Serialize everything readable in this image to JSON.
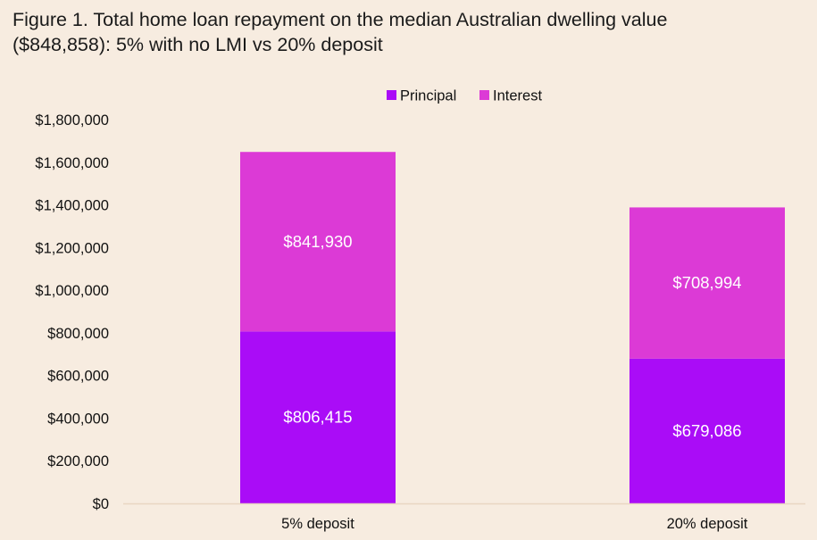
{
  "title": {
    "line1": "Figure 1. Total home loan repayment on the median Australian dwelling value",
    "line2": "($848,858): 5% with no LMI vs 20% deposit"
  },
  "colors": {
    "background": "#f7ece0",
    "principal": "#aa0cf7",
    "interest": "#dc3ad6",
    "axis": "#e9d6c2",
    "label_on_bar": "#ffffff"
  },
  "chart_data": {
    "type": "bar",
    "stacked": true,
    "categories": [
      "5% deposit",
      "20% deposit"
    ],
    "series": [
      {
        "name": "Principal",
        "values": [
          806415,
          679086
        ],
        "labels": [
          "$806,415",
          "$679,086"
        ]
      },
      {
        "name": "Interest",
        "values": [
          841930,
          708994
        ],
        "labels": [
          "$841,930",
          "$708,994"
        ]
      }
    ],
    "ylim": [
      0,
      1800000
    ],
    "yticks": [
      0,
      200000,
      400000,
      600000,
      800000,
      1000000,
      1200000,
      1400000,
      1600000,
      1800000
    ],
    "ytick_labels": [
      "$0",
      "$200,000",
      "$400,000",
      "$600,000",
      "$800,000",
      "$1,000,000",
      "$1,200,000",
      "$1,400,000",
      "$1,600,000",
      "$1,800,000"
    ],
    "legend_position": "top-center",
    "grid": false,
    "xlabel": "",
    "ylabel": ""
  }
}
